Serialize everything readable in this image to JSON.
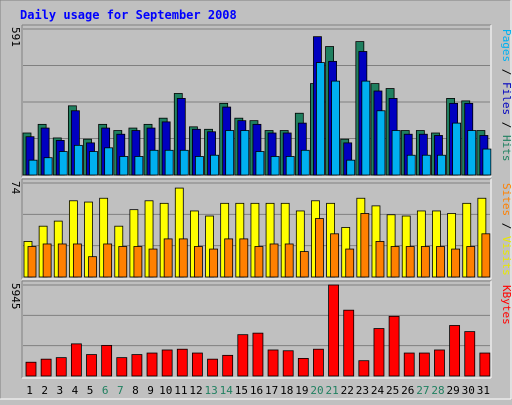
{
  "chart_data": {
    "type": "bar",
    "title": "Daily usage for September 2008",
    "categories": [
      "1",
      "2",
      "3",
      "4",
      "5",
      "6",
      "7",
      "8",
      "9",
      "10",
      "11",
      "12",
      "13",
      "14",
      "15",
      "16",
      "17",
      "18",
      "19",
      "20",
      "21",
      "22",
      "23",
      "24",
      "25",
      "26",
      "27",
      "28",
      "29",
      "30",
      "31"
    ],
    "weekend_days": [
      6,
      7,
      13,
      14,
      20,
      21,
      27,
      28
    ],
    "panels": [
      {
        "id": "pages-files-hits",
        "y_max_label": "591",
        "ylim": [
          0,
          591
        ],
        "right_label_parts": [
          {
            "text": "Pages",
            "color": "#00b0f0"
          },
          {
            "text": " / ",
            "color": "#000000"
          },
          {
            "text": "Files",
            "color": "#0000c0"
          },
          {
            "text": " / ",
            "color": "#000000"
          },
          {
            "text": "Hits",
            "color": "#208060"
          }
        ],
        "series": [
          {
            "name": "Hits",
            "color": "#208060",
            "values": [
              170,
              205,
              150,
              280,
              145,
              205,
              180,
              190,
              205,
              230,
              330,
              195,
              185,
              290,
              230,
              220,
              180,
              180,
              250,
              370,
              520,
              145,
              540,
              370,
              350,
              180,
              180,
              170,
              310,
              300,
              180
            ]
          },
          {
            "name": "Files",
            "color": "#0000c0",
            "values": [
              155,
              190,
              140,
              260,
              130,
              190,
              165,
              180,
              190,
              215,
              310,
              185,
              175,
              275,
              220,
              205,
              170,
              170,
              210,
              560,
              460,
              130,
              500,
              340,
              310,
              165,
              165,
              160,
              290,
              290,
              160
            ]
          },
          {
            "name": "Pages",
            "color": "#00b0f0",
            "values": [
              60,
              70,
              95,
              120,
              95,
              110,
              75,
              75,
              100,
              100,
              100,
              75,
              80,
              180,
              180,
              95,
              75,
              75,
              100,
              455,
              380,
              60,
              380,
              260,
              180,
              80,
              80,
              80,
              210,
              180,
              105
            ]
          }
        ]
      },
      {
        "id": "visits-sites",
        "y_max_label": "74",
        "ylim": [
          0,
          74
        ],
        "right_label_parts": [
          {
            "text": "Sites",
            "color": "#ff8000"
          },
          {
            "text": " / ",
            "color": "#000000"
          },
          {
            "text": "Visits",
            "color": "#e8e800"
          }
        ],
        "series": [
          {
            "name": "Visits",
            "color": "#ffff00",
            "values": [
              28,
              40,
              44,
              60,
              59,
              62,
              40,
              53,
              60,
              58,
              70,
              52,
              48,
              58,
              58,
              58,
              58,
              58,
              52,
              60,
              58,
              39,
              62,
              56,
              49,
              48,
              52,
              52,
              50,
              58,
              62
            ]
          },
          {
            "name": "Sites",
            "color": "#ff8000",
            "values": [
              24,
              26,
              26,
              26,
              16,
              26,
              24,
              24,
              22,
              30,
              30,
              24,
              22,
              30,
              30,
              24,
              26,
              26,
              20,
              46,
              34,
              22,
              50,
              28,
              24,
              24,
              24,
              24,
              22,
              24,
              34
            ]
          }
        ]
      },
      {
        "id": "kbytes",
        "y_max_label": "5945",
        "ylim": [
          0,
          5945
        ],
        "right_label_parts": [
          {
            "text": "KBytes",
            "color": "#ff0000"
          }
        ],
        "series": [
          {
            "name": "KBytes",
            "color": "#ff0000",
            "values": [
              900,
              1100,
              1200,
              2100,
              1400,
              2000,
              1200,
              1400,
              1500,
              1700,
              1750,
              1500,
              1100,
              1350,
              2700,
              2800,
              1700,
              1650,
              1150,
              1750,
              5945,
              4300,
              1000,
              3100,
              3900,
              1500,
              1500,
              1700,
              3300,
              2900,
              1500
            ]
          }
        ]
      }
    ],
    "colors": {
      "background": "#c0c0c0",
      "grid": "#808080",
      "title": "#0000ff",
      "axis_label": "#000000",
      "weekend_label": "#208060",
      "outline": "#000000"
    }
  }
}
